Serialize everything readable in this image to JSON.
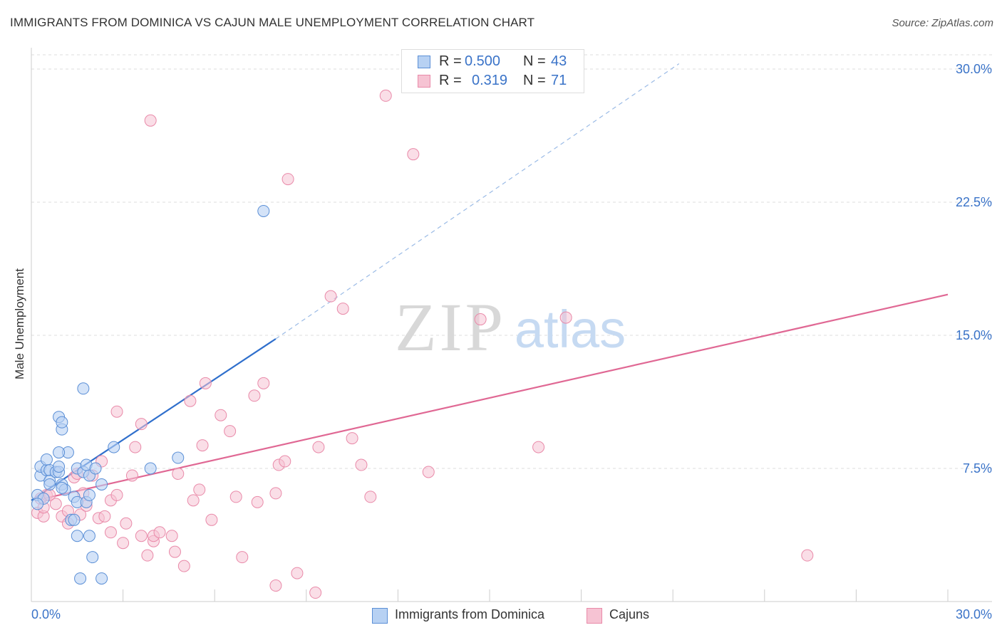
{
  "title": "IMMIGRANTS FROM DOMINICA VS CAJUN MALE UNEMPLOYMENT CORRELATION CHART",
  "source": "Source: ZipAtlas.com",
  "watermark": {
    "zip": "ZIP",
    "atlas": "atlas"
  },
  "legend": {
    "rows": [
      {
        "r_label": "R = ",
        "r_value": "0.500",
        "n_label": "N = ",
        "n_value": "43"
      },
      {
        "r_label": "R = ",
        "r_value": "0.319",
        "n_label": "N = ",
        "n_value": "71"
      }
    ]
  },
  "colors": {
    "blue_fill": "#b7d1f3",
    "blue_edge": "#5b8fd6",
    "blue_line": "#2f6fcc",
    "pink_fill": "#f6c3d3",
    "pink_edge": "#e98aa9",
    "pink_line": "#e06894",
    "axis_text": "#3a73c8",
    "grid": "#dddddd"
  },
  "chart_data": {
    "type": "scatter",
    "title": "IMMIGRANTS FROM DOMINICA VS CAJUN MALE UNEMPLOYMENT CORRELATION CHART",
    "xlabel": "",
    "ylabel": "Male Unemployment",
    "xlim": [
      0,
      30
    ],
    "ylim": [
      0,
      30
    ],
    "x_tick_labels": [
      "0.0%",
      "30.0%"
    ],
    "y_ticks": [
      {
        "value": 7.5,
        "label": "7.5%"
      },
      {
        "value": 15.0,
        "label": "15.0%"
      },
      {
        "value": 22.5,
        "label": "22.5%"
      },
      {
        "value": 30.0,
        "label": "30.0%"
      }
    ],
    "x_minor_ticks": [
      3,
      6,
      9,
      12,
      15,
      18,
      21,
      24,
      27,
      30
    ],
    "series": [
      {
        "name": "Immigrants from Dominica",
        "color": "blue",
        "r": "0.500",
        "n": "43",
        "trend": {
          "x0": 0,
          "y0": 5.7,
          "x1": 8.0,
          "y1": 14.8,
          "dashed_to_x": 21.2,
          "dashed_to_y": 30.3
        },
        "points": [
          [
            0.2,
            6.0
          ],
          [
            0.3,
            7.1
          ],
          [
            0.3,
            7.6
          ],
          [
            0.5,
            7.4
          ],
          [
            0.5,
            8.0
          ],
          [
            0.6,
            7.4
          ],
          [
            0.6,
            6.8
          ],
          [
            0.4,
            5.8
          ],
          [
            0.2,
            5.5
          ],
          [
            0.8,
            7.3
          ],
          [
            0.9,
            7.3
          ],
          [
            0.9,
            7.6
          ],
          [
            0.6,
            6.6
          ],
          [
            1.0,
            6.6
          ],
          [
            1.1,
            6.3
          ],
          [
            1.2,
            8.4
          ],
          [
            1.0,
            9.7
          ],
          [
            0.9,
            10.4
          ],
          [
            1.0,
            10.1
          ],
          [
            0.9,
            8.4
          ],
          [
            1.4,
            5.9
          ],
          [
            1.5,
            7.5
          ],
          [
            1.3,
            4.6
          ],
          [
            1.4,
            4.6
          ],
          [
            1.5,
            5.6
          ],
          [
            1.8,
            5.6
          ],
          [
            1.5,
            3.7
          ],
          [
            1.9,
            3.7
          ],
          [
            1.6,
            1.3
          ],
          [
            1.7,
            7.3
          ],
          [
            1.9,
            7.1
          ],
          [
            1.7,
            12.0
          ],
          [
            1.8,
            7.7
          ],
          [
            2.1,
            7.5
          ],
          [
            1.9,
            6.0
          ],
          [
            2.3,
            6.6
          ],
          [
            2.0,
            2.5
          ],
          [
            2.3,
            1.3
          ],
          [
            2.7,
            8.7
          ],
          [
            3.9,
            7.5
          ],
          [
            4.8,
            8.1
          ],
          [
            7.6,
            22.0
          ],
          [
            1.0,
            6.4
          ]
        ]
      },
      {
        "name": "Cajuns",
        "color": "pink",
        "r": "0.319",
        "n": "71",
        "trend": {
          "x0": 0.4,
          "y0": 5.8,
          "x1": 30.0,
          "y1": 17.3
        },
        "points": [
          [
            0.2,
            5.0
          ],
          [
            0.4,
            4.8
          ],
          [
            0.3,
            5.8
          ],
          [
            0.5,
            6.0
          ],
          [
            0.4,
            5.3
          ],
          [
            0.6,
            6.0
          ],
          [
            0.8,
            5.5
          ],
          [
            1.0,
            4.8
          ],
          [
            1.2,
            5.1
          ],
          [
            1.4,
            7.0
          ],
          [
            1.5,
            7.2
          ],
          [
            1.6,
            4.9
          ],
          [
            1.8,
            5.4
          ],
          [
            1.7,
            6.1
          ],
          [
            2.0,
            7.1
          ],
          [
            2.2,
            4.7
          ],
          [
            2.4,
            4.8
          ],
          [
            2.3,
            7.9
          ],
          [
            2.6,
            5.7
          ],
          [
            2.8,
            6.0
          ],
          [
            2.6,
            3.9
          ],
          [
            3.0,
            3.3
          ],
          [
            3.1,
            4.4
          ],
          [
            3.3,
            7.1
          ],
          [
            3.4,
            8.7
          ],
          [
            3.6,
            3.7
          ],
          [
            3.8,
            2.6
          ],
          [
            4.0,
            3.4
          ],
          [
            4.0,
            3.7
          ],
          [
            4.2,
            3.9
          ],
          [
            4.6,
            3.7
          ],
          [
            4.7,
            2.8
          ],
          [
            5.0,
            2.0
          ],
          [
            4.8,
            7.2
          ],
          [
            5.3,
            5.7
          ],
          [
            5.5,
            6.3
          ],
          [
            5.2,
            11.3
          ],
          [
            5.6,
            8.8
          ],
          [
            5.7,
            12.3
          ],
          [
            5.9,
            4.6
          ],
          [
            6.2,
            10.5
          ],
          [
            6.5,
            9.6
          ],
          [
            6.7,
            5.9
          ],
          [
            6.9,
            2.5
          ],
          [
            7.3,
            11.6
          ],
          [
            7.4,
            5.6
          ],
          [
            7.6,
            12.3
          ],
          [
            8.0,
            6.1
          ],
          [
            8.1,
            7.7
          ],
          [
            8.3,
            7.9
          ],
          [
            8.0,
            0.9
          ],
          [
            8.4,
            23.8
          ],
          [
            8.7,
            1.6
          ],
          [
            9.3,
            0.5
          ],
          [
            9.4,
            8.7
          ],
          [
            9.8,
            17.2
          ],
          [
            10.2,
            16.5
          ],
          [
            10.5,
            9.2
          ],
          [
            10.8,
            7.7
          ],
          [
            11.1,
            5.9
          ],
          [
            11.6,
            28.5
          ],
          [
            12.5,
            25.2
          ],
          [
            13.0,
            7.3
          ],
          [
            14.7,
            15.9
          ],
          [
            16.6,
            8.7
          ],
          [
            17.5,
            16.0
          ],
          [
            25.4,
            2.6
          ],
          [
            3.9,
            27.1
          ],
          [
            3.6,
            10.0
          ],
          [
            2.8,
            10.7
          ],
          [
            1.2,
            4.4
          ]
        ]
      }
    ]
  }
}
